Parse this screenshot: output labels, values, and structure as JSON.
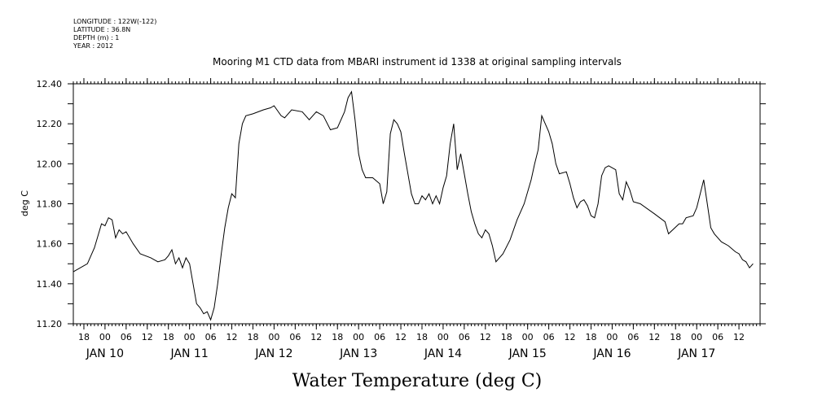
{
  "metadata": {
    "lines": [
      "LONGITUDE : 122W(-122)",
      "LATITUDE : 36.8N",
      "DEPTH (m) : 1",
      "YEAR : 2012"
    ]
  },
  "chart_data": {
    "type": "line",
    "title": "Mooring M1 CTD data from MBARI instrument id 1338 at original sampling intervals",
    "xlabel": "Water Temperature (deg C)",
    "ylabel": "deg C",
    "ylim": [
      11.2,
      12.4
    ],
    "yticks": [
      "11.20",
      "11.40",
      "11.60",
      "11.80",
      "12.00",
      "12.20",
      "12.40"
    ],
    "xlim": [
      "2012-01-09T15:00",
      "2012-01-17T18:00"
    ],
    "hour_ticks": [
      {
        "t": "2012-01-09T18:00",
        "label": "18"
      },
      {
        "t": "2012-01-10T00:00",
        "label": "00"
      },
      {
        "t": "2012-01-10T06:00",
        "label": "06"
      },
      {
        "t": "2012-01-10T12:00",
        "label": "12"
      },
      {
        "t": "2012-01-10T18:00",
        "label": "18"
      },
      {
        "t": "2012-01-11T00:00",
        "label": "00"
      },
      {
        "t": "2012-01-11T06:00",
        "label": "06"
      },
      {
        "t": "2012-01-11T12:00",
        "label": "12"
      },
      {
        "t": "2012-01-11T18:00",
        "label": "18"
      },
      {
        "t": "2012-01-12T00:00",
        "label": "00"
      },
      {
        "t": "2012-01-12T06:00",
        "label": "06"
      },
      {
        "t": "2012-01-12T12:00",
        "label": "12"
      },
      {
        "t": "2012-01-12T18:00",
        "label": "18"
      },
      {
        "t": "2012-01-13T00:00",
        "label": "00"
      },
      {
        "t": "2012-01-13T06:00",
        "label": "06"
      },
      {
        "t": "2012-01-13T12:00",
        "label": "12"
      },
      {
        "t": "2012-01-13T18:00",
        "label": "18"
      },
      {
        "t": "2012-01-14T00:00",
        "label": "00"
      },
      {
        "t": "2012-01-14T06:00",
        "label": "06"
      },
      {
        "t": "2012-01-14T12:00",
        "label": "12"
      },
      {
        "t": "2012-01-14T18:00",
        "label": "18"
      },
      {
        "t": "2012-01-15T00:00",
        "label": "00"
      },
      {
        "t": "2012-01-15T06:00",
        "label": "06"
      },
      {
        "t": "2012-01-15T12:00",
        "label": "12"
      },
      {
        "t": "2012-01-15T18:00",
        "label": "18"
      },
      {
        "t": "2012-01-16T00:00",
        "label": "00"
      },
      {
        "t": "2012-01-16T06:00",
        "label": "06"
      },
      {
        "t": "2012-01-16T12:00",
        "label": "12"
      },
      {
        "t": "2012-01-16T18:00",
        "label": "18"
      },
      {
        "t": "2012-01-17T00:00",
        "label": "00"
      },
      {
        "t": "2012-01-17T06:00",
        "label": "06"
      },
      {
        "t": "2012-01-17T12:00",
        "label": "12"
      }
    ],
    "day_labels": [
      {
        "t": "2012-01-10T00:00",
        "label": "JAN 10"
      },
      {
        "t": "2012-01-11T00:00",
        "label": "JAN 11"
      },
      {
        "t": "2012-01-12T00:00",
        "label": "JAN 12"
      },
      {
        "t": "2012-01-13T00:00",
        "label": "JAN 13"
      },
      {
        "t": "2012-01-14T00:00",
        "label": "JAN 14"
      },
      {
        "t": "2012-01-15T00:00",
        "label": "JAN 15"
      },
      {
        "t": "2012-01-16T00:00",
        "label": "JAN 16"
      },
      {
        "t": "2012-01-17T00:00",
        "label": "JAN 17"
      }
    ],
    "series": [
      {
        "color": "#000000",
        "points": [
          [
            "2012-01-09T15:00",
            11.46
          ],
          [
            "2012-01-09T19:00",
            11.5
          ],
          [
            "2012-01-09T21:00",
            11.58
          ],
          [
            "2012-01-09T23:00",
            11.7
          ],
          [
            "2012-01-10T00:00",
            11.69
          ],
          [
            "2012-01-10T01:00",
            11.73
          ],
          [
            "2012-01-10T02:00",
            11.72
          ],
          [
            "2012-01-10T03:00",
            11.63
          ],
          [
            "2012-01-10T04:00",
            11.67
          ],
          [
            "2012-01-10T05:00",
            11.65
          ],
          [
            "2012-01-10T06:00",
            11.66
          ],
          [
            "2012-01-10T08:00",
            11.6
          ],
          [
            "2012-01-10T10:00",
            11.55
          ],
          [
            "2012-01-10T13:00",
            11.53
          ],
          [
            "2012-01-10T15:00",
            11.51
          ],
          [
            "2012-01-10T17:00",
            11.52
          ],
          [
            "2012-01-10T18:00",
            11.54
          ],
          [
            "2012-01-10T19:00",
            11.57
          ],
          [
            "2012-01-10T20:00",
            11.5
          ],
          [
            "2012-01-10T21:00",
            11.53
          ],
          [
            "2012-01-10T22:00",
            11.48
          ],
          [
            "2012-01-10T23:00",
            11.53
          ],
          [
            "2012-01-11T00:00",
            11.5
          ],
          [
            "2012-01-11T01:00",
            11.4
          ],
          [
            "2012-01-11T02:00",
            11.3
          ],
          [
            "2012-01-11T03:00",
            11.28
          ],
          [
            "2012-01-11T04:00",
            11.25
          ],
          [
            "2012-01-11T05:00",
            11.26
          ],
          [
            "2012-01-11T06:00",
            11.22
          ],
          [
            "2012-01-11T07:00",
            11.28
          ],
          [
            "2012-01-11T08:00",
            11.4
          ],
          [
            "2012-01-11T09:00",
            11.55
          ],
          [
            "2012-01-11T10:00",
            11.68
          ],
          [
            "2012-01-11T11:00",
            11.78
          ],
          [
            "2012-01-11T12:00",
            11.85
          ],
          [
            "2012-01-11T13:00",
            11.83
          ],
          [
            "2012-01-11T14:00",
            12.1
          ],
          [
            "2012-01-11T15:00",
            12.2
          ],
          [
            "2012-01-11T16:00",
            12.24
          ],
          [
            "2012-01-11T18:00",
            12.25
          ],
          [
            "2012-01-11T21:00",
            12.27
          ],
          [
            "2012-01-11T23:00",
            12.28
          ],
          [
            "2012-01-12T00:00",
            12.29
          ],
          [
            "2012-01-12T02:00",
            12.24
          ],
          [
            "2012-01-12T03:00",
            12.23
          ],
          [
            "2012-01-12T05:00",
            12.27
          ],
          [
            "2012-01-12T08:00",
            12.26
          ],
          [
            "2012-01-12T10:00",
            12.22
          ],
          [
            "2012-01-12T12:00",
            12.26
          ],
          [
            "2012-01-12T14:00",
            12.24
          ],
          [
            "2012-01-12T16:00",
            12.17
          ],
          [
            "2012-01-12T18:00",
            12.18
          ],
          [
            "2012-01-12T20:00",
            12.26
          ],
          [
            "2012-01-12T21:00",
            12.33
          ],
          [
            "2012-01-12T22:00",
            12.36
          ],
          [
            "2012-01-12T23:00",
            12.22
          ],
          [
            "2012-01-13T00:00",
            12.05
          ],
          [
            "2012-01-13T01:00",
            11.97
          ],
          [
            "2012-01-13T02:00",
            11.93
          ],
          [
            "2012-01-13T04:00",
            11.93
          ],
          [
            "2012-01-13T06:00",
            11.9
          ],
          [
            "2012-01-13T07:00",
            11.8
          ],
          [
            "2012-01-13T08:00",
            11.86
          ],
          [
            "2012-01-13T09:00",
            12.15
          ],
          [
            "2012-01-13T10:00",
            12.22
          ],
          [
            "2012-01-13T11:00",
            12.2
          ],
          [
            "2012-01-13T12:00",
            12.16
          ],
          [
            "2012-01-13T13:00",
            12.05
          ],
          [
            "2012-01-13T14:00",
            11.95
          ],
          [
            "2012-01-13T15:00",
            11.85
          ],
          [
            "2012-01-13T16:00",
            11.8
          ],
          [
            "2012-01-13T17:00",
            11.8
          ],
          [
            "2012-01-13T18:00",
            11.84
          ],
          [
            "2012-01-13T19:00",
            11.82
          ],
          [
            "2012-01-13T20:00",
            11.85
          ],
          [
            "2012-01-13T21:00",
            11.8
          ],
          [
            "2012-01-13T22:00",
            11.84
          ],
          [
            "2012-01-13T23:00",
            11.8
          ],
          [
            "2012-01-14T00:00",
            11.88
          ],
          [
            "2012-01-14T01:00",
            11.94
          ],
          [
            "2012-01-14T02:00",
            12.1
          ],
          [
            "2012-01-14T03:00",
            12.2
          ],
          [
            "2012-01-14T04:00",
            11.97
          ],
          [
            "2012-01-14T05:00",
            12.05
          ],
          [
            "2012-01-14T06:00",
            11.95
          ],
          [
            "2012-01-14T07:00",
            11.85
          ],
          [
            "2012-01-14T08:00",
            11.76
          ],
          [
            "2012-01-14T09:00",
            11.7
          ],
          [
            "2012-01-14T10:00",
            11.65
          ],
          [
            "2012-01-14T11:00",
            11.63
          ],
          [
            "2012-01-14T12:00",
            11.67
          ],
          [
            "2012-01-14T13:00",
            11.65
          ],
          [
            "2012-01-14T14:00",
            11.59
          ],
          [
            "2012-01-14T15:00",
            11.51
          ],
          [
            "2012-01-14T17:00",
            11.55
          ],
          [
            "2012-01-14T19:00",
            11.62
          ],
          [
            "2012-01-14T21:00",
            11.72
          ],
          [
            "2012-01-14T23:00",
            11.8
          ],
          [
            "2012-01-15T01:00",
            11.92
          ],
          [
            "2012-01-15T02:00",
            12.0
          ],
          [
            "2012-01-15T03:00",
            12.07
          ],
          [
            "2012-01-15T04:00",
            12.24
          ],
          [
            "2012-01-15T05:00",
            12.2
          ],
          [
            "2012-01-15T06:00",
            12.16
          ],
          [
            "2012-01-15T07:00",
            12.1
          ],
          [
            "2012-01-15T08:00",
            12.0
          ],
          [
            "2012-01-15T09:00",
            11.95
          ],
          [
            "2012-01-15T11:00",
            11.96
          ],
          [
            "2012-01-15T12:00",
            11.9
          ],
          [
            "2012-01-15T13:00",
            11.83
          ],
          [
            "2012-01-15T14:00",
            11.78
          ],
          [
            "2012-01-15T15:00",
            11.81
          ],
          [
            "2012-01-15T16:00",
            11.82
          ],
          [
            "2012-01-15T17:00",
            11.79
          ],
          [
            "2012-01-15T18:00",
            11.74
          ],
          [
            "2012-01-15T19:00",
            11.73
          ],
          [
            "2012-01-15T20:00",
            11.8
          ],
          [
            "2012-01-15T21:00",
            11.94
          ],
          [
            "2012-01-15T22:00",
            11.98
          ],
          [
            "2012-01-15T23:00",
            11.99
          ],
          [
            "2012-01-16T01:00",
            11.97
          ],
          [
            "2012-01-16T02:00",
            11.85
          ],
          [
            "2012-01-16T03:00",
            11.82
          ],
          [
            "2012-01-16T04:00",
            11.91
          ],
          [
            "2012-01-16T05:00",
            11.87
          ],
          [
            "2012-01-16T06:00",
            11.81
          ],
          [
            "2012-01-16T08:00",
            11.8
          ],
          [
            "2012-01-16T12:00",
            11.75
          ],
          [
            "2012-01-16T15:00",
            11.71
          ],
          [
            "2012-01-16T16:00",
            11.65
          ],
          [
            "2012-01-16T19:00",
            11.7
          ],
          [
            "2012-01-16T20:00",
            11.7
          ],
          [
            "2012-01-16T21:00",
            11.73
          ],
          [
            "2012-01-16T23:00",
            11.74
          ],
          [
            "2012-01-17T00:00",
            11.78
          ],
          [
            "2012-01-17T01:00",
            11.85
          ],
          [
            "2012-01-17T02:00",
            11.92
          ],
          [
            "2012-01-17T03:00",
            11.8
          ],
          [
            "2012-01-17T04:00",
            11.68
          ],
          [
            "2012-01-17T05:00",
            11.65
          ],
          [
            "2012-01-17T07:00",
            11.61
          ],
          [
            "2012-01-17T09:00",
            11.59
          ],
          [
            "2012-01-17T11:00",
            11.56
          ],
          [
            "2012-01-17T12:00",
            11.55
          ],
          [
            "2012-01-17T13:00",
            11.52
          ],
          [
            "2012-01-17T14:00",
            11.51
          ],
          [
            "2012-01-17T15:00",
            11.48
          ],
          [
            "2012-01-17T16:00",
            11.5
          ]
        ]
      }
    ],
    "grid": false,
    "legend": "none"
  }
}
